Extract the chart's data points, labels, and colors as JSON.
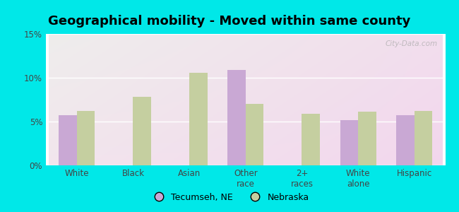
{
  "title": "Geographical mobility - Moved within same county",
  "categories": [
    "White",
    "Black",
    "Asian",
    "Other\nrace",
    "2+\nraces",
    "White\nalone",
    "Hispanic"
  ],
  "tecumseh": [
    5.7,
    0.0,
    0.0,
    10.9,
    0.0,
    5.2,
    5.7
  ],
  "nebraska": [
    6.2,
    7.8,
    10.6,
    7.0,
    5.9,
    6.1,
    6.2
  ],
  "tecumseh_color": "#c9a8d4",
  "nebraska_color": "#c5cfa0",
  "bar_width": 0.32,
  "ylim": [
    0,
    15
  ],
  "yticks": [
    0,
    5,
    10,
    15
  ],
  "ytick_labels": [
    "0%",
    "5%",
    "10%",
    "15%"
  ],
  "legend_tecumseh": "Tecumseh, NE",
  "legend_nebraska": "Nebraska",
  "outer_bg": "#00e8e8",
  "watermark": "City-Data.com",
  "title_fontsize": 13,
  "tick_fontsize": 8.5,
  "legend_fontsize": 9
}
